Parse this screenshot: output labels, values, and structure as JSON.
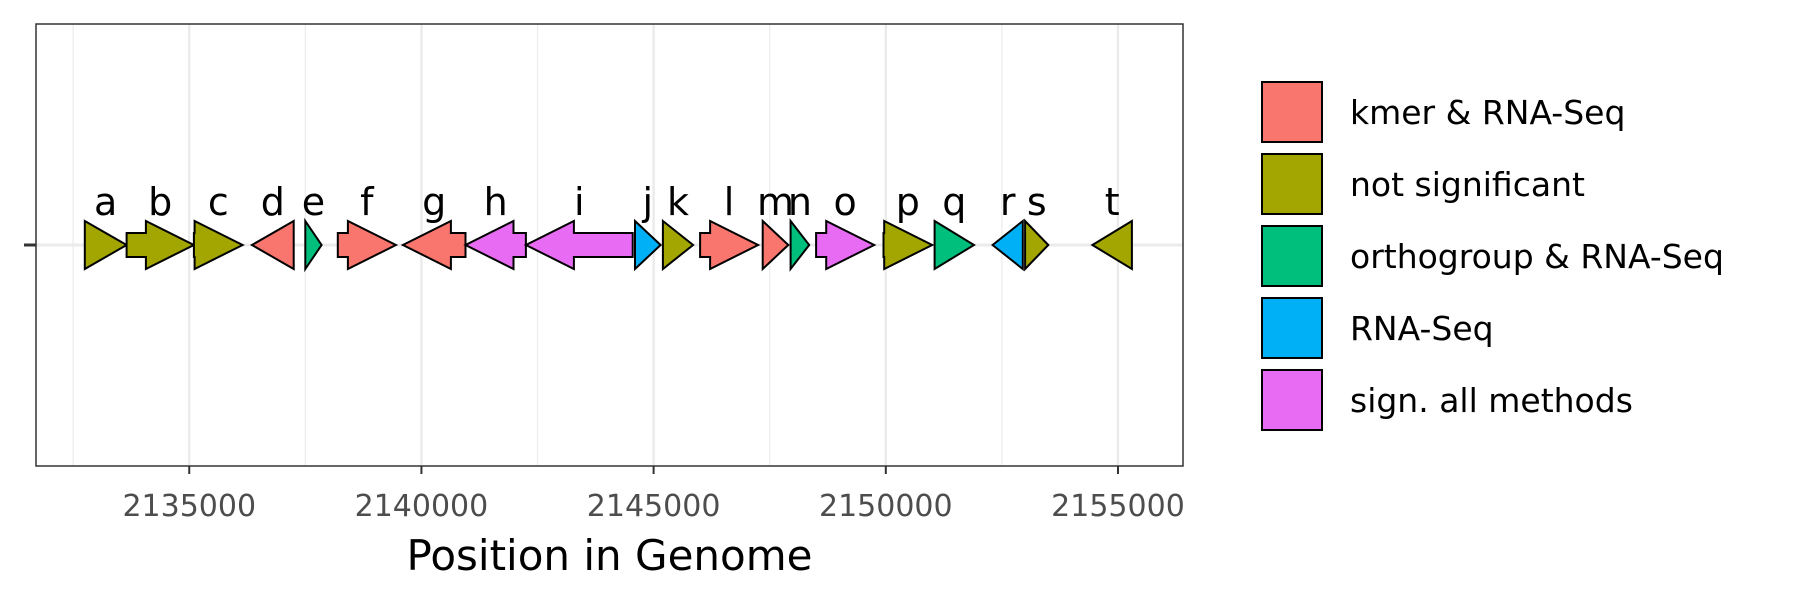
{
  "chart_data": {
    "type": "gene-arrow-map",
    "xlabel": "Position in Genome",
    "xlim": [
      2131700,
      2156400
    ],
    "x_ticks": [
      2135000,
      2140000,
      2145000,
      2150000,
      2155000
    ],
    "x_tick_labels": [
      "2135000",
      "2140000",
      "2145000",
      "2150000",
      "2155000"
    ],
    "grid": true,
    "legend_position": "right",
    "categories": [
      {
        "key": "kmer",
        "label": "kmer & RNA-Seq",
        "color": "#F8766D"
      },
      {
        "key": "ns",
        "label": "not significant",
        "color": "#A3A500"
      },
      {
        "key": "ortho",
        "label": "orthogroup & RNA-Seq",
        "color": "#00BF7D"
      },
      {
        "key": "rna",
        "label": "RNA-Seq",
        "color": "#00B0F6"
      },
      {
        "key": "all",
        "label": "sign. all methods",
        "color": "#E76BF3"
      }
    ],
    "genes": [
      {
        "label": "a",
        "start": 2132750,
        "end": 2133650,
        "strand": "+",
        "category": "ns"
      },
      {
        "label": "b",
        "start": 2133650,
        "end": 2135100,
        "strand": "+",
        "category": "ns"
      },
      {
        "label": "c",
        "start": 2135100,
        "end": 2136150,
        "strand": "+",
        "category": "ns"
      },
      {
        "label": "d",
        "start": 2136350,
        "end": 2137250,
        "strand": "-",
        "category": "kmer"
      },
      {
        "label": "e",
        "start": 2137500,
        "end": 2137850,
        "strand": "+",
        "category": "ortho"
      },
      {
        "label": "f",
        "start": 2138200,
        "end": 2139450,
        "strand": "+",
        "category": "kmer"
      },
      {
        "label": "g",
        "start": 2139600,
        "end": 2140950,
        "strand": "-",
        "category": "kmer"
      },
      {
        "label": "h",
        "start": 2140950,
        "end": 2142250,
        "strand": "-",
        "category": "all"
      },
      {
        "label": "i",
        "start": 2142250,
        "end": 2144550,
        "strand": "-",
        "category": "all"
      },
      {
        "label": "j",
        "start": 2144600,
        "end": 2145150,
        "strand": "+",
        "category": "rna"
      },
      {
        "label": "k",
        "start": 2145200,
        "end": 2145850,
        "strand": "+",
        "category": "ns"
      },
      {
        "label": "l",
        "start": 2146000,
        "end": 2147250,
        "strand": "+",
        "category": "kmer"
      },
      {
        "label": "m",
        "start": 2147350,
        "end": 2147900,
        "strand": "+",
        "category": "kmer"
      },
      {
        "label": "n",
        "start": 2147950,
        "end": 2148350,
        "strand": "+",
        "category": "ortho"
      },
      {
        "label": "o",
        "start": 2148500,
        "end": 2149750,
        "strand": "+",
        "category": "all"
      },
      {
        "label": "p",
        "start": 2149950,
        "end": 2151000,
        "strand": "+",
        "category": "ns"
      },
      {
        "label": "q",
        "start": 2151050,
        "end": 2151900,
        "strand": "+",
        "category": "ortho"
      },
      {
        "label": "r",
        "start": 2152300,
        "end": 2152950,
        "strand": "-",
        "category": "rna"
      },
      {
        "label": "s",
        "start": 2153000,
        "end": 2153500,
        "strand": "+",
        "category": "ns"
      },
      {
        "label": "t",
        "start": 2154450,
        "end": 2155300,
        "strand": "-",
        "category": "ns"
      }
    ]
  }
}
